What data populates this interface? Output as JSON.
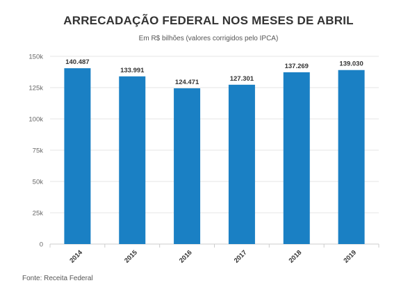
{
  "chart_data": {
    "type": "bar",
    "title": "ARRECADAÇÃO FEDERAL NOS MESES DE ABRIL",
    "subtitle": "Em R$ bilhões (valores corrigidos pelo IPCA)",
    "source": "Fonte: Receita Federal",
    "xlabel": "",
    "ylabel": "",
    "categories": [
      "2014",
      "2015",
      "2016",
      "2017",
      "2018",
      "2019"
    ],
    "values": [
      140487,
      133991,
      124471,
      127301,
      137269,
      139030
    ],
    "value_labels": [
      "140.487",
      "133.991",
      "124.471",
      "127.301",
      "137.269",
      "139.030"
    ],
    "ylim": [
      0,
      150000
    ],
    "y_ticks": [
      0,
      25000,
      50000,
      75000,
      100000,
      125000,
      150000
    ],
    "y_tick_labels": [
      "0",
      "25k",
      "50k",
      "75k",
      "100k",
      "125k",
      "150k"
    ],
    "grid": true,
    "colors": {
      "bar": "#1a80c4",
      "grid": "#e6e6e6",
      "axis": "#cccccc"
    }
  }
}
